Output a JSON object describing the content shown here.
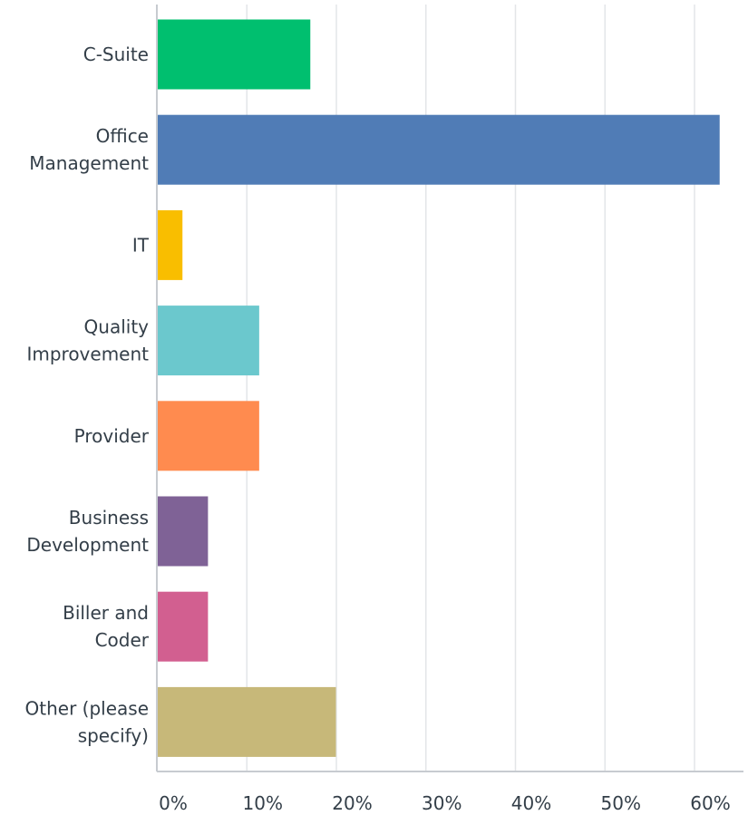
{
  "chart_data": {
    "type": "bar",
    "orientation": "horizontal",
    "categories": [
      "C-Suite",
      "Office Management",
      "IT",
      "Quality Improvement",
      "Provider",
      "Business Development",
      "Biller and Coder",
      "Other (please specify)"
    ],
    "category_label_lines": [
      [
        "C-Suite"
      ],
      [
        "Office",
        "Management"
      ],
      [
        "IT"
      ],
      [
        "Quality",
        "Improvement"
      ],
      [
        "Provider"
      ],
      [
        "Business",
        "Development"
      ],
      [
        "Biller and",
        "Coder"
      ],
      [
        "Other (please",
        "specify)"
      ]
    ],
    "values": [
      17.14,
      62.86,
      2.86,
      11.43,
      11.43,
      5.71,
      5.71,
      20.0
    ],
    "colors": [
      "#00bf6f",
      "#507cb6",
      "#f9be00",
      "#6bc8cd",
      "#ff8b4f",
      "#7f6296",
      "#d25f90",
      "#c7b879"
    ],
    "xlim": [
      0,
      64
    ],
    "x_ticks": [
      0,
      10,
      20,
      30,
      40,
      50,
      60
    ],
    "x_tick_labels": [
      "0%",
      "10%",
      "20%",
      "30%",
      "40%",
      "50%",
      "60%"
    ],
    "grid": true,
    "title": "",
    "xlabel": "",
    "ylabel": ""
  }
}
